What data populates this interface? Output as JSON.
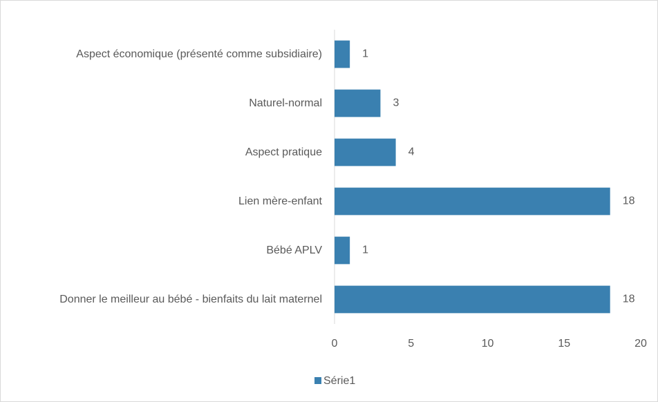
{
  "chart_data": {
    "type": "bar",
    "orientation": "horizontal",
    "categories": [
      "Aspect économique (présenté comme subsidiaire)",
      "Naturel-normal",
      "Aspect pratique",
      "Lien mère-enfant",
      "Bébé APLV",
      "Donner le meilleur au bébé - bienfaits du lait maternel"
    ],
    "series": [
      {
        "name": "Série1",
        "color": "#3a80b0",
        "values": [
          1,
          3,
          4,
          18,
          1,
          18
        ]
      }
    ],
    "xlim": [
      0,
      20
    ],
    "xticks": [
      0,
      5,
      10,
      15,
      20
    ],
    "grid": false,
    "data_labels": true,
    "legend": "bottom"
  }
}
